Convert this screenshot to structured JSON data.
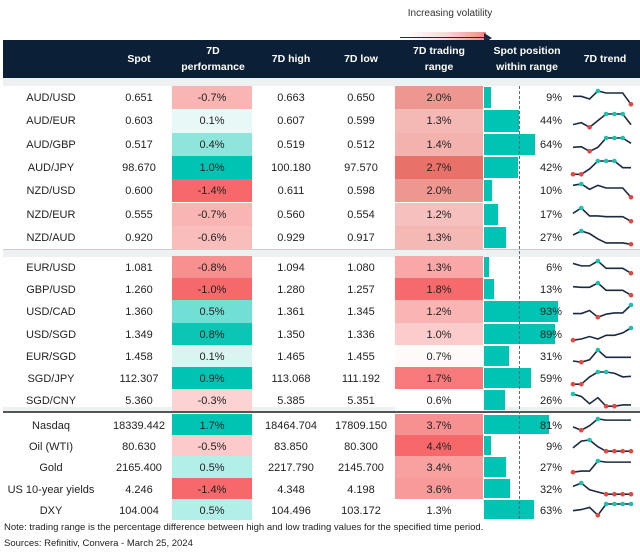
{
  "legend": {
    "label": "Increasing volatility"
  },
  "headers": {
    "spot": "Spot",
    "perf": "7D performance",
    "high": "7D high",
    "low": "7D low",
    "range": "7D trading range",
    "position": "Spot position within range",
    "trend": "7D trend"
  },
  "colors": {
    "header": "#0b1f37",
    "position_bar": "#00c4b3",
    "trend_line": "#1a2a40",
    "trend_high_marker": "#18c2b0",
    "trend_low_marker": "#e8453c"
  },
  "chart_data": {
    "type": "table",
    "groups": [
      {
        "rows": [
          {
            "name": "AUD/USD",
            "spot": "0.651",
            "perf": "-0.7%",
            "perf_color": "#f8b5b3",
            "high": "0.663",
            "low": "0.650",
            "range": "2.0%",
            "range_color": "#ee9790",
            "position": 9,
            "trend": [
              0.6,
              0.6,
              0.4,
              1,
              0.85,
              0.85,
              0.85,
              0
            ]
          },
          {
            "name": "AUD/EUR",
            "spot": "0.603",
            "perf": "0.1%",
            "perf_color": "#e8f8f6",
            "high": "0.607",
            "low": "0.599",
            "range": "1.3%",
            "range_color": "#f4b8b5",
            "position": 44,
            "trend": [
              0.2,
              0.35,
              0,
              0.5,
              1,
              1,
              1,
              0.2
            ]
          },
          {
            "name": "AUD/GBP",
            "spot": "0.517",
            "perf": "0.4%",
            "perf_color": "#8fe5dc",
            "high": "0.519",
            "low": "0.512",
            "range": "1.4%",
            "range_color": "#f3b2ae",
            "position": 64,
            "trend": [
              0.3,
              0.35,
              0,
              0.3,
              1,
              1,
              1,
              0.6
            ]
          },
          {
            "name": "AUD/JPY",
            "spot": "98.670",
            "perf": "1.0%",
            "perf_color": "#00c4b3",
            "high": "100.180",
            "low": "97.570",
            "range": "2.7%",
            "range_color": "#e8716a",
            "position": 42,
            "trend": [
              0,
              0,
              0.4,
              1,
              1,
              1,
              0.5,
              0.5
            ]
          },
          {
            "name": "NZD/USD",
            "spot": "0.600",
            "perf": "-1.4%",
            "perf_color": "#f6686a",
            "high": "0.611",
            "low": "0.598",
            "range": "2.0%",
            "range_color": "#ee9790",
            "position": 10,
            "trend": [
              0.9,
              1,
              0.6,
              0.9,
              0.7,
              0.7,
              0.7,
              0
            ]
          },
          {
            "name": "NZD/EUR",
            "spot": "0.555",
            "perf": "-0.7%",
            "perf_color": "#f8b5b3",
            "high": "0.560",
            "low": "0.554",
            "range": "1.2%",
            "range_color": "#f5c0bd",
            "position": 17,
            "trend": [
              0.6,
              1,
              0.4,
              0.4,
              0.35,
              0.35,
              0.35,
              0
            ]
          },
          {
            "name": "NZD/AUD",
            "spot": "0.920",
            "perf": "-0.6%",
            "perf_color": "#f9bdbb",
            "high": "0.929",
            "low": "0.917",
            "range": "1.3%",
            "range_color": "#f4b8b5",
            "position": 27,
            "trend": [
              0.7,
              1,
              0.8,
              0.4,
              0.1,
              0.1,
              0.1,
              0
            ]
          }
        ]
      },
      {
        "rows": [
          {
            "name": "EUR/USD",
            "spot": "1.081",
            "perf": "-0.8%",
            "perf_color": "#f7908f",
            "high": "1.094",
            "low": "1.080",
            "range": "1.3%",
            "range_color": "#f9a8a7",
            "position": 6,
            "trend": [
              0.8,
              0.6,
              0.6,
              1,
              0.4,
              0.4,
              0.4,
              0
            ]
          },
          {
            "name": "GBP/USD",
            "spot": "1.260",
            "perf": "-1.0%",
            "perf_color": "#f6696b",
            "high": "1.280",
            "low": "1.257",
            "range": "1.8%",
            "range_color": "#f66a6c",
            "position": 13,
            "trend": [
              0.7,
              0.65,
              0.65,
              1,
              0.4,
              0.4,
              0.4,
              0
            ]
          },
          {
            "name": "USD/CAD",
            "spot": "1.360",
            "perf": "0.5%",
            "perf_color": "#72dfd4",
            "high": "1.361",
            "low": "1.345",
            "range": "1.2%",
            "range_color": "#fab4b3",
            "position": 93,
            "trend": [
              0.3,
              0.3,
              0.55,
              0,
              0.25,
              0.35,
              0.35,
              1
            ]
          },
          {
            "name": "USD/SGD",
            "spot": "1.349",
            "perf": "0.8%",
            "perf_color": "#0cc6b5",
            "high": "1.350",
            "low": "1.336",
            "range": "1.0%",
            "range_color": "#fccccc",
            "position": 89,
            "trend": [
              0,
              0.1,
              0.3,
              0.1,
              0.4,
              0.4,
              0.6,
              1
            ]
          },
          {
            "name": "EUR/SGD",
            "spot": "1.458",
            "perf": "0.1%",
            "perf_color": "#d8f5f2",
            "high": "1.465",
            "low": "1.455",
            "range": "0.7%",
            "range_color": "#fffafa",
            "position": 31,
            "trend": [
              0.1,
              0,
              0.2,
              1,
              0.4,
              0.4,
              0.4,
              0.4
            ]
          },
          {
            "name": "SGD/JPY",
            "spot": "112.307",
            "perf": "0.9%",
            "perf_color": "#00c4b3",
            "high": "113.068",
            "low": "111.192",
            "range": "1.7%",
            "range_color": "#f7797b",
            "position": 59,
            "trend": [
              0,
              0,
              0.6,
              1,
              1,
              0.9,
              0.6,
              0.65
            ]
          },
          {
            "name": "SGD/CNY",
            "spot": "5.360",
            "perf": "-0.3%",
            "perf_color": "#fcd2d2",
            "high": "5.385",
            "low": "5.351",
            "range": "0.6%",
            "range_color": "#ffffff",
            "position": 26,
            "trend": [
              1,
              0.8,
              0.2,
              0.7,
              0,
              0,
              0.1,
              0.1
            ]
          }
        ]
      },
      {
        "rows": [
          {
            "name": "Nasdaq",
            "spot": "18339.442",
            "perf": "1.7%",
            "perf_color": "#00c4b3",
            "high": "18464.704",
            "low": "17809.150",
            "range": "3.7%",
            "range_color": "#f79090",
            "position": 81,
            "trend": [
              0.3,
              0,
              0.4,
              1,
              0.9,
              0.9,
              0.9,
              0.9
            ]
          },
          {
            "name": "Oil (WTI)",
            "spot": "80.630",
            "perf": "-0.5%",
            "perf_color": "#fccaca",
            "high": "83.850",
            "low": "80.300",
            "range": "4.4%",
            "range_color": "#f6686a",
            "position": 9,
            "trend": [
              0.3,
              0.9,
              1,
              0.4,
              0,
              0,
              0,
              0
            ]
          },
          {
            "name": "Gold",
            "spot": "2165.400",
            "perf": "0.5%",
            "perf_color": "#b3efe9",
            "high": "2217.790",
            "low": "2145.700",
            "range": "3.4%",
            "range_color": "#f9a1a1",
            "position": 27,
            "trend": [
              0,
              0.1,
              0.1,
              1,
              0.9,
              0.9,
              0.9,
              0.9
            ]
          },
          {
            "name": "US 10-year yields",
            "spot": "4.246",
            "perf": "-1.4%",
            "perf_color": "#f6686a",
            "high": "4.348",
            "low": "4.198",
            "range": "3.6%",
            "range_color": "#f8999a",
            "position": 32,
            "trend": [
              0.7,
              1,
              0.4,
              0.2,
              0,
              0,
              0,
              0
            ]
          },
          {
            "name": "DXY",
            "spot": "104.004",
            "perf": "0.5%",
            "perf_color": "#b3efe9",
            "high": "104.496",
            "low": "103.172",
            "range": "1.3%",
            "range_color": "#ffffff",
            "position": 63,
            "trend": [
              0.4,
              0.5,
              0.7,
              0,
              1,
              1,
              1,
              1
            ]
          }
        ]
      }
    ]
  },
  "footer": {
    "note": "Note: trading range is the percentage difference between high and low trading values for the specified time period.",
    "sources": "Sources: Refinitiv, Convera - March 25, 2024"
  }
}
